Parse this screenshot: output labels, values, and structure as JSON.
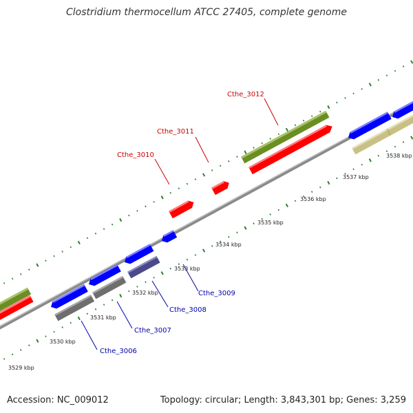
{
  "title": "Clostridium thermocellum ATCC 27405, complete genome",
  "footer": {
    "accession": "Accession: NC_009012",
    "info": "Topology: circular; Length: 3,843,301 bp; Genes: 3,259"
  },
  "colors": {
    "forward_cds": "#ff0000",
    "forward_gene": "#6b8e23",
    "reverse_cds": "#0000ff",
    "reverse_gene": "#6e6e6e",
    "reverse_gene_2": "#4a4a8a",
    "reverse_other": "#c8c085",
    "backbone": "#8a8a8a",
    "label_top": "#cc0000",
    "label_bottom": "#0000aa",
    "ticks": "#2e7d32"
  },
  "scale": {
    "labels": [
      "3529 kbp",
      "3530 kbp",
      "3531 kbp",
      "3532 kbp",
      "3533 kbp",
      "3534 kbp",
      "3535 kbp",
      "3536 kbp",
      "3537 kbp",
      "3538 kbp"
    ]
  },
  "top_labels": [
    "Cthe_3010",
    "Cthe_3011",
    "Cthe_3012"
  ],
  "bottom_labels": [
    "Cthe_3006",
    "Cthe_3007",
    "Cthe_3008",
    "Cthe_3009"
  ]
}
